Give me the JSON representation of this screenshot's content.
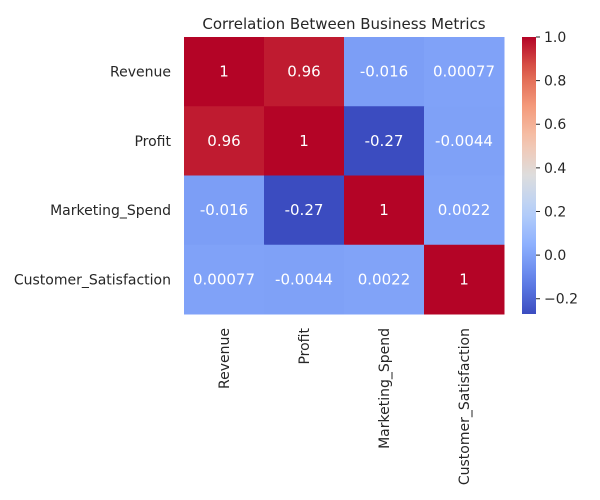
{
  "chart_data": {
    "type": "heatmap",
    "title": "Correlation Between Business Metrics",
    "row_labels": [
      "Revenue",
      "Profit",
      "Marketing_Spend",
      "Customer_Satisfaction"
    ],
    "col_labels": [
      "Revenue",
      "Profit",
      "Marketing_Spend",
      "Customer_Satisfaction"
    ],
    "values": [
      [
        1,
        0.96,
        -0.016,
        0.00077
      ],
      [
        0.96,
        1,
        -0.27,
        -0.0044
      ],
      [
        -0.016,
        -0.27,
        1,
        0.0022
      ],
      [
        0.00077,
        -0.0044,
        0.0022,
        1
      ]
    ],
    "annotations": [
      [
        "1",
        "0.96",
        "-0.016",
        "0.00077"
      ],
      [
        "0.96",
        "1",
        "-0.27",
        "-0.0044"
      ],
      [
        "-0.016",
        "-0.27",
        "1",
        "0.0022"
      ],
      [
        "0.00077",
        "-0.0044",
        "0.0022",
        "1"
      ]
    ],
    "colormap": "coolwarm",
    "vmin": -0.27,
    "vmax": 1,
    "colorbar": {
      "ticks": [
        -0.2,
        0.0,
        0.2,
        0.4,
        0.6,
        0.8,
        1.0
      ],
      "tick_labels": [
        "−0.2",
        "0.0",
        "0.2",
        "0.4",
        "0.6",
        "0.8",
        "1.0"
      ]
    }
  }
}
